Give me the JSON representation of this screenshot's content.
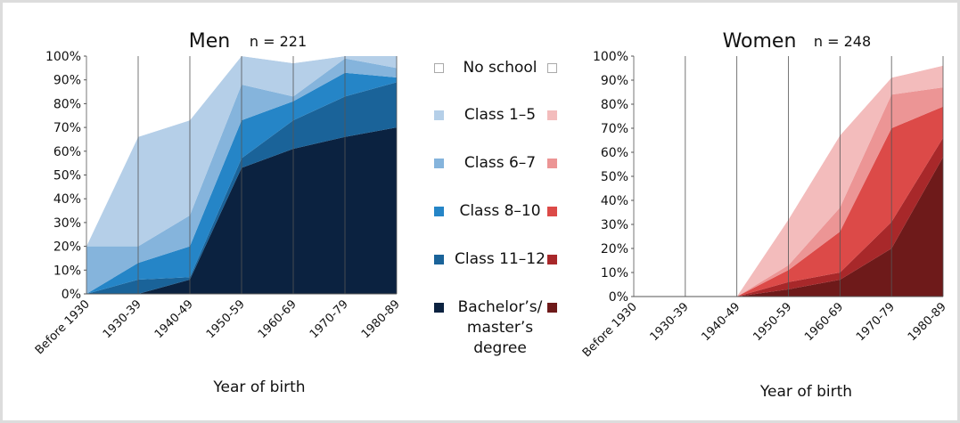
{
  "chart_data": [
    {
      "type": "stacked_area",
      "title": "Men",
      "subtitle": "n = 221",
      "x_label": "Year of birth",
      "categories": [
        "Before 1930",
        "1930-39",
        "1940-49",
        "1950-59",
        "1960-69",
        "1970-79",
        "1980-89"
      ],
      "ylim": [
        0,
        100
      ],
      "yticks": [
        {
          "value": 0,
          "label": "0%"
        },
        {
          "value": 10,
          "label": "10%"
        },
        {
          "value": 20,
          "label": "20%"
        },
        {
          "value": 30,
          "label": "30%"
        },
        {
          "value": 40,
          "label": "40%"
        },
        {
          "value": 50,
          "label": "50%"
        },
        {
          "value": 60,
          "label": "60%"
        },
        {
          "value": 70,
          "label": "70%"
        },
        {
          "value": 80,
          "label": "80%"
        },
        {
          "value": 90,
          "label": "90%"
        },
        {
          "value": 100,
          "label": "100%"
        }
      ],
      "series": [
        {
          "name": "No school",
          "color": "#ffffff",
          "values": [
            80,
            34,
            27,
            0,
            3,
            0,
            0
          ]
        },
        {
          "name": "Class 1–5",
          "color": "#b5cfe8",
          "values": [
            0,
            46,
            40,
            12,
            14,
            1,
            5
          ]
        },
        {
          "name": "Class 6–7",
          "color": "#85b4dc",
          "values": [
            20,
            7,
            13,
            15,
            2,
            6,
            4
          ]
        },
        {
          "name": "Class 8–10",
          "color": "#2585c7",
          "values": [
            0,
            7,
            13,
            16,
            8,
            10,
            2
          ]
        },
        {
          "name": "Class 11–12",
          "color": "#1a6399",
          "values": [
            0,
            6,
            1,
            4,
            12,
            17,
            19
          ]
        },
        {
          "name": "Bachelor’s/ master’s degree",
          "color": "#0b2240",
          "values": [
            0,
            0,
            6,
            53,
            61,
            66,
            70
          ]
        }
      ]
    },
    {
      "type": "stacked_area",
      "title": "Women",
      "subtitle": "n = 248",
      "x_label": "Year of birth",
      "categories": [
        "Before 1930",
        "1930-39",
        "1940-49",
        "1950-59",
        "1960-69",
        "1970-79",
        "1980-89"
      ],
      "ylim": [
        0,
        100
      ],
      "yticks": [
        {
          "value": 0,
          "label": "0%"
        },
        {
          "value": 10,
          "label": "10%"
        },
        {
          "value": 20,
          "label": "20%"
        },
        {
          "value": 30,
          "label": "30%"
        },
        {
          "value": 40,
          "label": "40%"
        },
        {
          "value": 50,
          "label": "50%"
        },
        {
          "value": 60,
          "label": "60%"
        },
        {
          "value": 70,
          "label": "70%"
        },
        {
          "value": 80,
          "label": "80%"
        },
        {
          "value": 90,
          "label": "90%"
        },
        {
          "value": 100,
          "label": "100%"
        }
      ],
      "series": [
        {
          "color": "#ffffff",
          "values": [
            100,
            100,
            100,
            68,
            33,
            9,
            4
          ]
        },
        {
          "color": "#f3bcbc",
          "values": [
            0,
            0,
            0,
            19,
            30,
            7,
            9
          ]
        },
        {
          "color": "#ec9595",
          "values": [
            0,
            0,
            0,
            2,
            10,
            14,
            8
          ]
        },
        {
          "color": "#dc4a48",
          "values": [
            0,
            0,
            0,
            5,
            17,
            39,
            13
          ]
        },
        {
          "color": "#a8282a",
          "values": [
            0,
            0,
            0,
            3,
            3,
            11,
            8
          ]
        },
        {
          "color": "#6e1a1a",
          "values": [
            0,
            0,
            0,
            3,
            7,
            20,
            58
          ]
        }
      ]
    }
  ]
}
